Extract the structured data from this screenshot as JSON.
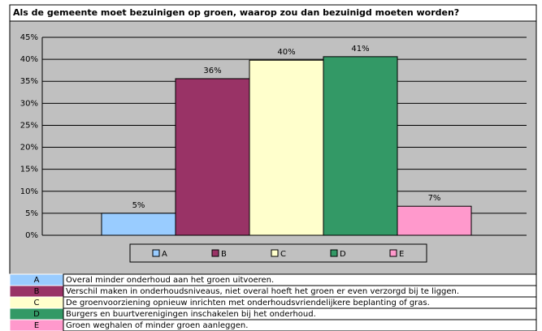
{
  "chart_data": {
    "type": "bar",
    "title": "Als de gemeente moet bezuinigen op groen, waarop zou dan bezuinigd moeten worden?",
    "categories": [
      "A",
      "B",
      "C",
      "D",
      "E"
    ],
    "values": [
      5,
      35.6,
      39.8,
      40.6,
      6.6
    ],
    "value_labels": [
      "5%",
      "36%",
      "40%",
      "41%",
      "7%"
    ],
    "colors": [
      "#99ccff",
      "#993366",
      "#ffffcc",
      "#339966",
      "#ff99cc"
    ],
    "ylim": [
      0,
      45
    ],
    "yticks": [
      {
        "value": 0,
        "label": "0%"
      },
      {
        "value": 5,
        "label": "5%"
      },
      {
        "value": 10,
        "label": "10%"
      },
      {
        "value": 15,
        "label": "15%"
      },
      {
        "value": 20,
        "label": "20%"
      },
      {
        "value": 25,
        "label": "25%"
      },
      {
        "value": 30,
        "label": "30%"
      },
      {
        "value": 35,
        "label": "35%"
      },
      {
        "value": 40,
        "label": "40%"
      },
      {
        "value": 45,
        "label": "45%"
      }
    ],
    "grid": true,
    "legend": "bottom"
  },
  "table": {
    "rows": [
      {
        "key": "A",
        "text": "Overal minder onderhoud aan het groen uitvoeren."
      },
      {
        "key": "B",
        "text": "Verschil maken in onderhoudsniveaus, niet overal hoeft het groen er even verzorgd bij te liggen."
      },
      {
        "key": "C",
        "text": "De groenvoorziening opnieuw inrichten met onderhoudsvriendelijkere beplanting of gras."
      },
      {
        "key": "D",
        "text": "Burgers en buurtverenigingen inschakelen bij het onderhoud."
      },
      {
        "key": "E",
        "text": "Groen weghalen of minder groen aanleggen."
      }
    ]
  }
}
